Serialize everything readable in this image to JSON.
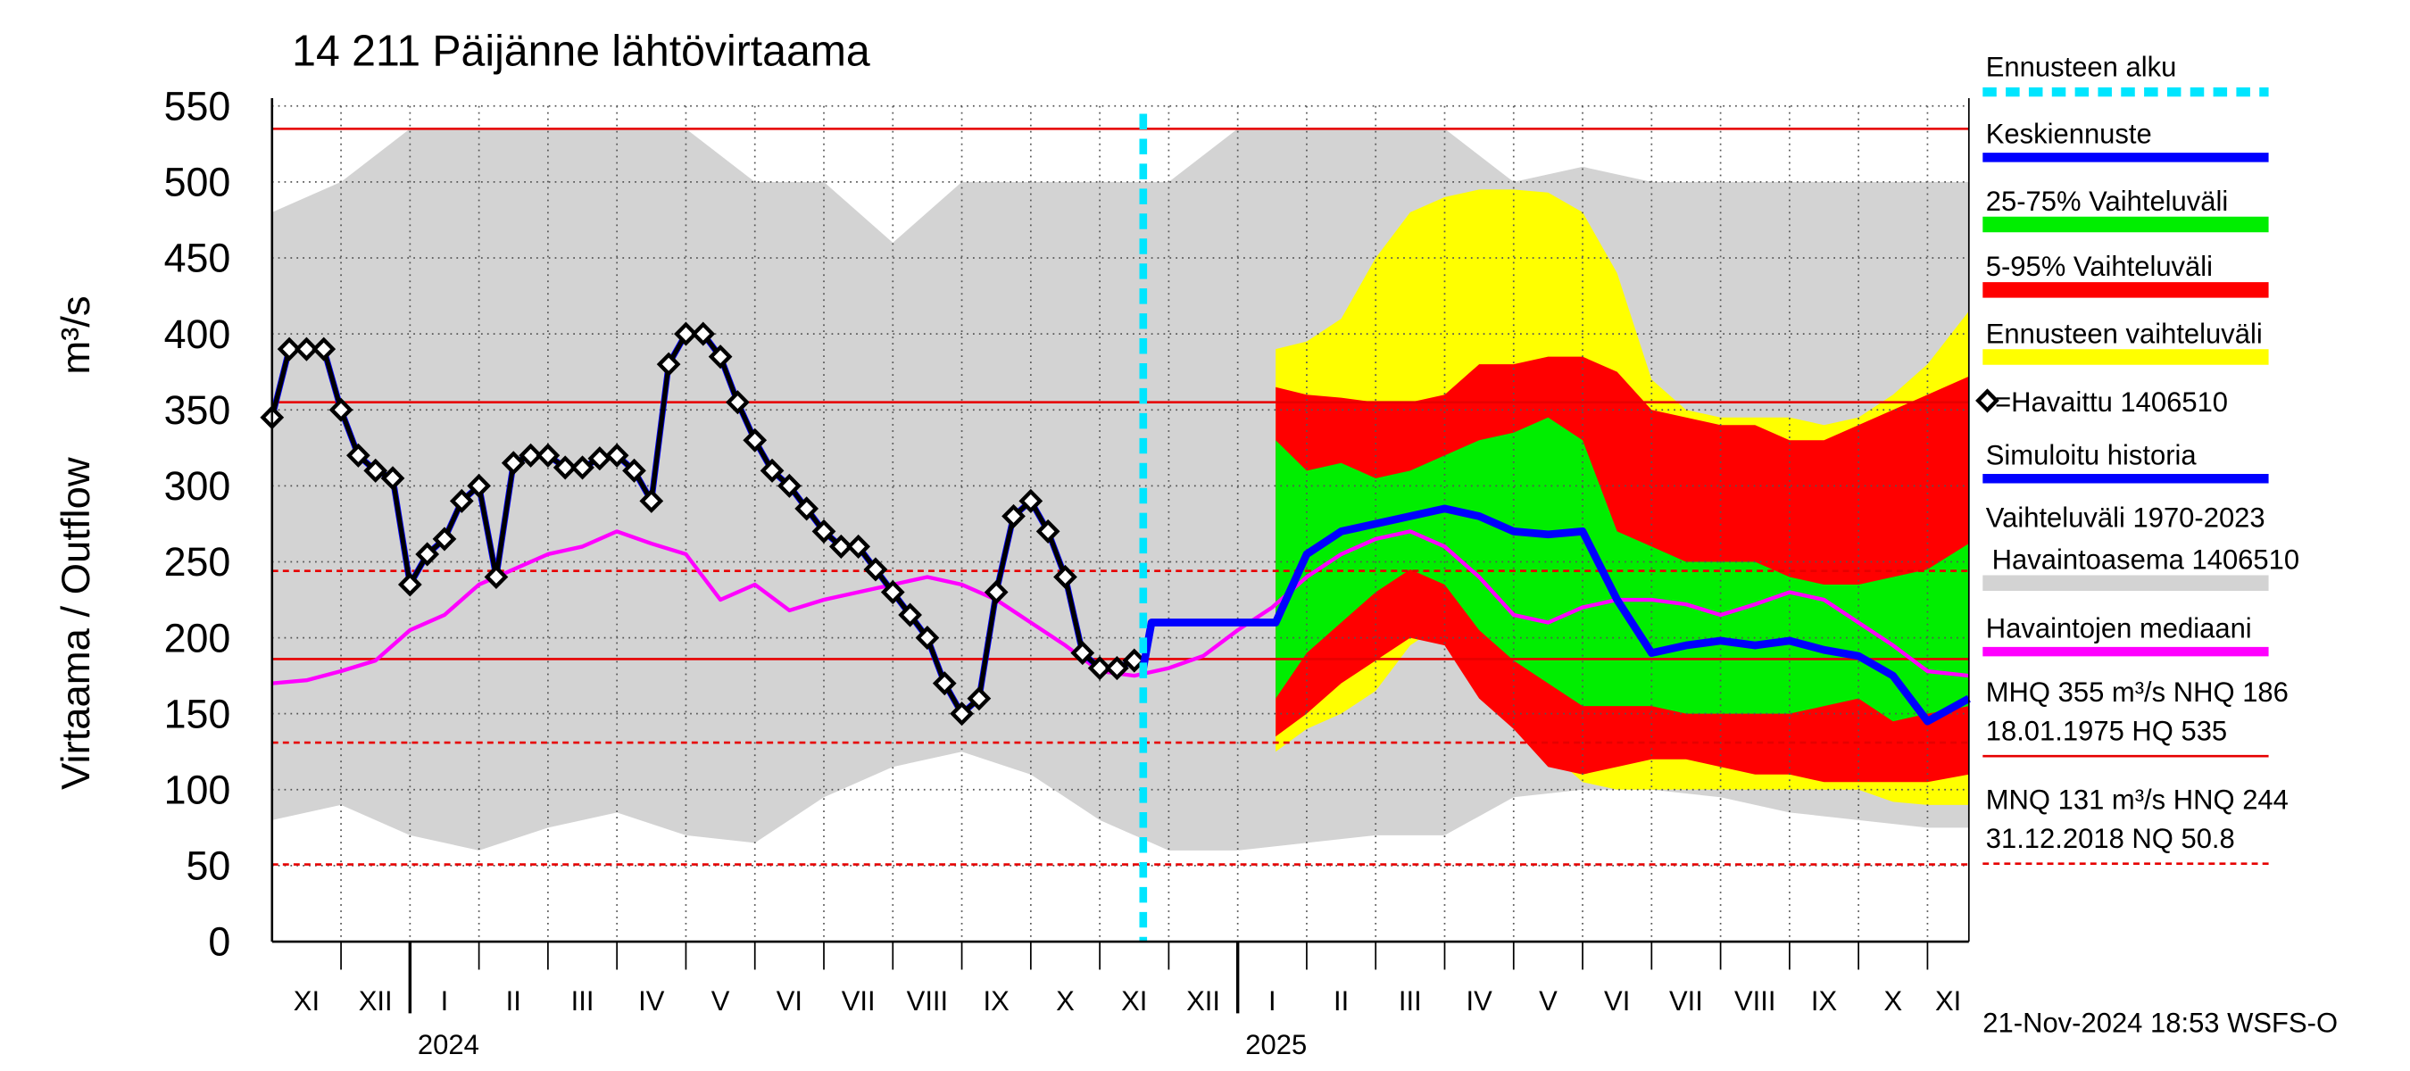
{
  "chart_data": {
    "type": "line",
    "title": "14 211 Päijänne lähtövirtaama",
    "y_label": "Virtaama / Outflow",
    "y_unit": "m³/s",
    "categories": [
      "XI",
      "XII",
      "I",
      "II",
      "III",
      "IV",
      "V",
      "VI",
      "VII",
      "VIII",
      "IX",
      "X",
      "XI",
      "XII",
      "I",
      "II",
      "III",
      "IV",
      "V",
      "VI",
      "VII",
      "VIII",
      "IX",
      "X",
      "XI"
    ],
    "year_ticks": [
      {
        "value": 2,
        "label": "2024"
      },
      {
        "value": 14,
        "label": "2025"
      }
    ],
    "xlim": [
      0,
      24.6
    ],
    "ylim": [
      0,
      550
    ],
    "yticks": [
      0,
      50,
      100,
      150,
      200,
      250,
      300,
      350,
      400,
      450,
      500,
      550
    ],
    "grid": true,
    "forecast_start": {
      "name": "Ennusteen alku",
      "x": 12.63,
      "color": "#00e5ff"
    },
    "bands": [
      {
        "name": [
          "Vaihteluväli 1970-2023",
          "Havaintoasema 1406510"
        ],
        "color": "#d3d3d3",
        "x": [
          0,
          1,
          2,
          3,
          4,
          5,
          6,
          7,
          8,
          9,
          10,
          11,
          12,
          13,
          14,
          15,
          16,
          17,
          18,
          19,
          20,
          21,
          22,
          23,
          24,
          24.6
        ],
        "high": [
          480,
          500,
          535,
          535,
          535,
          535,
          535,
          500,
          500,
          460,
          500,
          500,
          500,
          500,
          535,
          535,
          535,
          535,
          500,
          510,
          500,
          500,
          500,
          500,
          500,
          500
        ],
        "low": [
          80,
          90,
          70,
          60,
          75,
          85,
          70,
          65,
          95,
          115,
          125,
          110,
          80,
          60,
          60,
          65,
          70,
          70,
          95,
          100,
          100,
          95,
          85,
          80,
          75,
          75
        ]
      },
      {
        "name": "Ennusteen vaihteluväli",
        "color": "#ffff00",
        "x": [
          14.55,
          15,
          15.5,
          16,
          16.5,
          17,
          17.5,
          18,
          18.5,
          19,
          19.5,
          20,
          20.5,
          21,
          21.5,
          22,
          22.5,
          23,
          23.5,
          24,
          24.6
        ],
        "high": [
          390,
          395,
          410,
          450,
          480,
          490,
          495,
          495,
          493,
          480,
          440,
          370,
          350,
          345,
          345,
          345,
          340,
          345,
          360,
          380,
          415
        ],
        "low": [
          125,
          140,
          150,
          165,
          195,
          210,
          180,
          145,
          125,
          105,
          100,
          100,
          100,
          100,
          100,
          100,
          100,
          100,
          92,
          90,
          90
        ]
      },
      {
        "name": "5-95% Vaihteluväli",
        "color": "#ff0000",
        "x": [
          14.55,
          15,
          15.5,
          16,
          16.5,
          17,
          17.5,
          18,
          18.5,
          19,
          19.5,
          20,
          20.5,
          21,
          21.5,
          22,
          22.5,
          23,
          23.5,
          24,
          24.6
        ],
        "high": [
          365,
          360,
          358,
          355,
          355,
          360,
          380,
          380,
          385,
          385,
          375,
          350,
          345,
          340,
          340,
          330,
          330,
          340,
          350,
          360,
          372
        ],
        "low": [
          135,
          150,
          170,
          185,
          200,
          195,
          160,
          140,
          115,
          110,
          115,
          120,
          120,
          115,
          110,
          110,
          105,
          105,
          105,
          105,
          110
        ]
      },
      {
        "name": "25-75% Vaihteluväli",
        "color": "#00ee00",
        "x": [
          14.55,
          15,
          15.5,
          16,
          16.5,
          17,
          17.5,
          18,
          18.5,
          19,
          19.5,
          20,
          20.5,
          21,
          21.5,
          22,
          22.5,
          23,
          23.5,
          24,
          24.6
        ],
        "high": [
          330,
          310,
          315,
          305,
          310,
          320,
          330,
          335,
          345,
          330,
          270,
          260,
          250,
          250,
          250,
          240,
          235,
          235,
          240,
          245,
          262
        ],
        "low": [
          160,
          190,
          210,
          230,
          245,
          235,
          205,
          185,
          170,
          155,
          155,
          155,
          150,
          150,
          150,
          150,
          155,
          160,
          145,
          150,
          155
        ]
      }
    ],
    "series": [
      {
        "name": "Havaintojen mediaani",
        "color": "#ff00ff",
        "x": [
          0,
          0.5,
          1,
          1.5,
          2,
          2.5,
          3,
          3.5,
          4,
          4.5,
          5,
          5.5,
          6,
          6.5,
          7,
          7.5,
          8,
          8.5,
          9,
          9.5,
          10,
          10.5,
          11,
          11.5,
          12,
          12.5,
          13,
          13.5,
          14,
          14.5,
          15,
          15.5,
          16,
          16.5,
          17,
          17.5,
          18,
          18.5,
          19,
          19.5,
          20,
          20.5,
          21,
          21.5,
          22,
          22.5,
          23,
          23.5,
          24,
          24.6
        ],
        "values": [
          170,
          172,
          178,
          185,
          205,
          215,
          235,
          245,
          255,
          260,
          270,
          262,
          255,
          225,
          235,
          218,
          225,
          230,
          235,
          240,
          235,
          225,
          210,
          195,
          178,
          175,
          180,
          188,
          205,
          220,
          240,
          255,
          265,
          270,
          260,
          240,
          215,
          210,
          220,
          225,
          225,
          222,
          215,
          222,
          230,
          225,
          210,
          195,
          178,
          175
        ]
      },
      {
        "name": "Simuloitu historia",
        "color": "#0000ff",
        "x": [
          0,
          0.25,
          0.5,
          0.75,
          1,
          1.25,
          1.5,
          1.75,
          2,
          2.25,
          2.5,
          2.75,
          3,
          3.25,
          3.5,
          3.75,
          4,
          4.25,
          4.5,
          4.75,
          5,
          5.25,
          5.5,
          5.75,
          6,
          6.25,
          6.5,
          6.75,
          7,
          7.25,
          7.5,
          7.75,
          8,
          8.25,
          8.5,
          8.75,
          9,
          9.25,
          9.5,
          9.75,
          10,
          10.25,
          10.5,
          10.75,
          11,
          11.25,
          11.5,
          11.75,
          12,
          12.25,
          12.5
        ],
        "values": [
          345,
          390,
          390,
          390,
          350,
          320,
          310,
          305,
          235,
          255,
          265,
          290,
          300,
          240,
          315,
          320,
          320,
          312,
          312,
          318,
          320,
          310,
          290,
          380,
          400,
          400,
          385,
          355,
          330,
          310,
          300,
          285,
          270,
          260,
          260,
          245,
          230,
          215,
          200,
          170,
          150,
          160,
          230,
          280,
          290,
          270,
          240,
          190,
          180,
          180,
          185
        ]
      },
      {
        "name": "=Havaittu 1406510",
        "color": "#000000",
        "marker": "diamond",
        "x": [
          0,
          0.25,
          0.5,
          0.75,
          1,
          1.25,
          1.5,
          1.75,
          2,
          2.25,
          2.5,
          2.75,
          3,
          3.25,
          3.5,
          3.75,
          4,
          4.25,
          4.5,
          4.75,
          5,
          5.25,
          5.5,
          5.75,
          6,
          6.25,
          6.5,
          6.75,
          7,
          7.25,
          7.5,
          7.75,
          8,
          8.25,
          8.5,
          8.75,
          9,
          9.25,
          9.5,
          9.75,
          10,
          10.25,
          10.5,
          10.75,
          11,
          11.25,
          11.5,
          11.75,
          12,
          12.25,
          12.5
        ],
        "values": [
          345,
          390,
          390,
          390,
          350,
          320,
          310,
          305,
          235,
          255,
          265,
          290,
          300,
          240,
          315,
          320,
          320,
          312,
          312,
          318,
          320,
          310,
          290,
          380,
          400,
          400,
          385,
          355,
          330,
          310,
          300,
          285,
          270,
          260,
          260,
          245,
          230,
          215,
          200,
          170,
          150,
          160,
          230,
          280,
          290,
          270,
          240,
          190,
          180,
          180,
          185
        ]
      },
      {
        "name": "Keskiennuste",
        "color": "#0000ff",
        "x": [
          12.63,
          12.75,
          14.55,
          15,
          15.5,
          16,
          16.5,
          17,
          17.5,
          18,
          18.5,
          19,
          19.5,
          20,
          20.5,
          21,
          21.5,
          22,
          22.5,
          23,
          23.5,
          24,
          24.6
        ],
        "values": [
          180,
          210,
          210,
          255,
          270,
          275,
          280,
          285,
          280,
          270,
          268,
          270,
          225,
          190,
          195,
          198,
          195,
          198,
          192,
          188,
          175,
          145,
          160
        ]
      }
    ],
    "reference_lines": [
      {
        "value": 535,
        "dashed": false
      },
      {
        "value": 355,
        "dashed": false
      },
      {
        "value": 186,
        "dashed": false
      },
      {
        "value": 244,
        "dashed": true
      },
      {
        "value": 131,
        "dashed": true
      },
      {
        "value": 50.8,
        "dashed": true
      }
    ],
    "reference_color": "#e60000",
    "reference_notes": [
      [
        "MHQ  355 m³/s NHQ  186",
        "18.01.1975 HQ  535"
      ],
      [
        "MNQ  131 m³/s HNQ  244",
        "31.12.2018 NQ 50.8"
      ]
    ],
    "footer": "21-Nov-2024 18:53 WSFS-O"
  }
}
